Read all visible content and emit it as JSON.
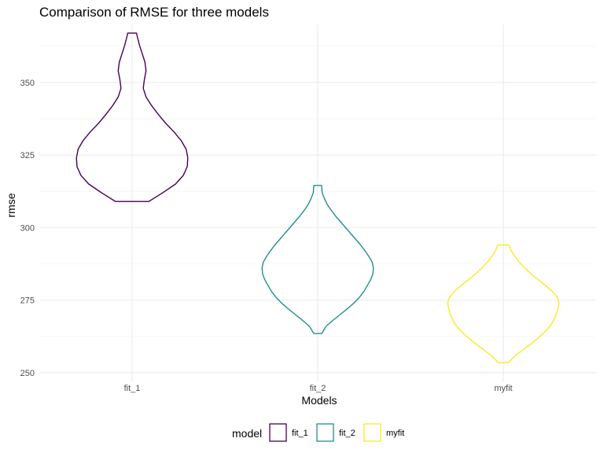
{
  "chart_data": {
    "type": "violin",
    "title": "Comparison of RMSE for three models",
    "xlabel": "Models",
    "ylabel": "rmse",
    "categories": [
      "fit_1",
      "fit_2",
      "myfit"
    ],
    "ylim": [
      247,
      370
    ],
    "yticks": [
      250,
      275,
      300,
      325,
      350
    ],
    "grid": true,
    "legend": {
      "title": "model",
      "position": "bottom",
      "entries": [
        "fit_1",
        "fit_2",
        "myfit"
      ]
    },
    "colors": {
      "fit_1": "#440154",
      "fit_2": "#21908C",
      "myfit": "#FDE725"
    },
    "series": [
      {
        "category": "fit_1",
        "min": 309,
        "max": 367,
        "profile": [
          [
            309,
            0.3
          ],
          [
            312,
            0.55
          ],
          [
            315,
            0.78
          ],
          [
            318,
            0.92
          ],
          [
            321,
            0.99
          ],
          [
            324,
            1.0
          ],
          [
            327,
            0.97
          ],
          [
            330,
            0.88
          ],
          [
            333,
            0.75
          ],
          [
            336,
            0.6
          ],
          [
            339,
            0.47
          ],
          [
            342,
            0.35
          ],
          [
            345,
            0.25
          ],
          [
            348,
            0.2
          ],
          [
            351,
            0.22
          ],
          [
            354,
            0.25
          ],
          [
            357,
            0.23
          ],
          [
            360,
            0.18
          ],
          [
            363,
            0.13
          ],
          [
            366,
            0.09
          ],
          [
            367,
            0.08
          ]
        ]
      },
      {
        "category": "fit_2",
        "min": 263.5,
        "max": 314.5,
        "profile": [
          [
            263.5,
            0.07
          ],
          [
            266,
            0.15
          ],
          [
            268,
            0.27
          ],
          [
            270,
            0.4
          ],
          [
            272,
            0.53
          ],
          [
            274,
            0.65
          ],
          [
            276,
            0.75
          ],
          [
            278,
            0.83
          ],
          [
            280,
            0.89
          ],
          [
            282,
            0.95
          ],
          [
            284,
            0.99
          ],
          [
            286,
            1.0
          ],
          [
            288,
            0.98
          ],
          [
            290,
            0.92
          ],
          [
            292,
            0.85
          ],
          [
            294,
            0.77
          ],
          [
            296,
            0.68
          ],
          [
            298,
            0.59
          ],
          [
            300,
            0.5
          ],
          [
            302,
            0.41
          ],
          [
            304,
            0.32
          ],
          [
            306,
            0.24
          ],
          [
            308,
            0.17
          ],
          [
            310,
            0.12
          ],
          [
            312,
            0.08
          ],
          [
            314.5,
            0.07
          ]
        ]
      },
      {
        "category": "myfit",
        "min": 253.5,
        "max": 294,
        "profile": [
          [
            253.5,
            0.09
          ],
          [
            256,
            0.22
          ],
          [
            258,
            0.36
          ],
          [
            260,
            0.5
          ],
          [
            262,
            0.63
          ],
          [
            264,
            0.74
          ],
          [
            266,
            0.84
          ],
          [
            268,
            0.9
          ],
          [
            270,
            0.95
          ],
          [
            272,
            0.98
          ],
          [
            274,
            1.0
          ],
          [
            276,
            0.97
          ],
          [
            278,
            0.88
          ],
          [
            280,
            0.76
          ],
          [
            282,
            0.63
          ],
          [
            284,
            0.5
          ],
          [
            286,
            0.39
          ],
          [
            288,
            0.29
          ],
          [
            290,
            0.21
          ],
          [
            292,
            0.14
          ],
          [
            294,
            0.1
          ]
        ]
      }
    ]
  }
}
